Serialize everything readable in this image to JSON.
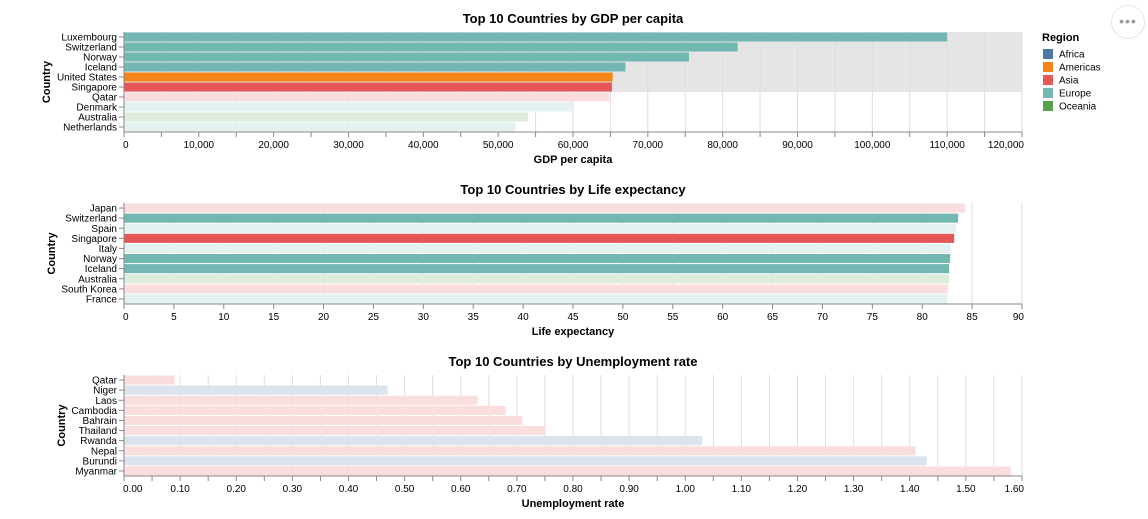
{
  "actions_button": {
    "icon": "ellipsis-icon",
    "glyph": "•••"
  },
  "legend": {
    "title": "Region",
    "entries": [
      {
        "label": "Africa",
        "color": "#4c78a8"
      },
      {
        "label": "Americas",
        "color": "#f58518"
      },
      {
        "label": "Asia",
        "color": "#e45756"
      },
      {
        "label": "Europe",
        "color": "#72b7b2"
      },
      {
        "label": "Oceania",
        "color": "#54a24b"
      }
    ]
  },
  "chart_data": [
    {
      "type": "bar",
      "orientation": "horizontal",
      "title": "Top 10 Countries by GDP per capita",
      "xlabel": "GDP per capita",
      "ylabel": "Country",
      "xlim": [
        0,
        120000
      ],
      "ticks": [
        0,
        10000,
        20000,
        30000,
        40000,
        50000,
        60000,
        70000,
        80000,
        90000,
        100000,
        110000,
        120000
      ],
      "tick_labels": [
        "0",
        "10,000",
        "20,000",
        "30,000",
        "40,000",
        "50,000",
        "60,000",
        "70,000",
        "80,000",
        "90,000",
        "100,000",
        "110,000",
        "120,000"
      ],
      "minor_ticks": true,
      "grid": true,
      "selection_band": [
        "Luxembourg",
        "Singapore"
      ],
      "categories": [
        "Luxembourg",
        "Switzerland",
        "Norway",
        "Iceland",
        "United States",
        "Singapore",
        "Qatar",
        "Denmark",
        "Australia",
        "Netherlands"
      ],
      "values": [
        110000,
        82000,
        75500,
        67000,
        65300,
        65200,
        64900,
        59900,
        54000,
        52300
      ],
      "regions": [
        "Europe",
        "Europe",
        "Europe",
        "Europe",
        "Americas",
        "Asia",
        "Asia",
        "Europe",
        "Oceania",
        "Europe"
      ],
      "highlighted": [
        true,
        true,
        true,
        true,
        true,
        true,
        false,
        false,
        false,
        false
      ]
    },
    {
      "type": "bar",
      "orientation": "horizontal",
      "title": "Top 10 Countries by Life expectancy",
      "xlabel": "Life expectancy",
      "ylabel": "Country",
      "xlim": [
        0,
        90
      ],
      "ticks": [
        0,
        5,
        10,
        15,
        20,
        25,
        30,
        35,
        40,
        45,
        50,
        55,
        60,
        65,
        70,
        75,
        80,
        85,
        90
      ],
      "tick_labels": [
        "0",
        "5",
        "10",
        "15",
        "20",
        "25",
        "30",
        "35",
        "40",
        "45",
        "50",
        "55",
        "60",
        "65",
        "70",
        "75",
        "80",
        "85",
        "90"
      ],
      "minor_ticks": false,
      "grid": true,
      "categories": [
        "Japan",
        "Switzerland",
        "Spain",
        "Singapore",
        "Italy",
        "Norway",
        "Iceland",
        "Australia",
        "South Korea",
        "France"
      ],
      "values": [
        84.3,
        83.6,
        83.4,
        83.2,
        82.9,
        82.8,
        82.7,
        82.7,
        82.6,
        82.5
      ],
      "regions": [
        "Asia",
        "Europe",
        "Europe",
        "Asia",
        "Europe",
        "Europe",
        "Europe",
        "Oceania",
        "Asia",
        "Europe"
      ],
      "highlighted": [
        false,
        true,
        false,
        true,
        false,
        true,
        true,
        false,
        false,
        false
      ]
    },
    {
      "type": "bar",
      "orientation": "horizontal",
      "title": "Top 10 Countries by Unemployment rate",
      "xlabel": "Unemployment rate",
      "ylabel": "Country",
      "xlim": [
        0,
        1.6
      ],
      "ticks": [
        0,
        0.1,
        0.2,
        0.3,
        0.4,
        0.5,
        0.6,
        0.7,
        0.8,
        0.9,
        1.0,
        1.1,
        1.2,
        1.3,
        1.4,
        1.5,
        1.6
      ],
      "tick_labels": [
        "0.00",
        "0.10",
        "0.20",
        "0.30",
        "0.40",
        "0.50",
        "0.60",
        "0.70",
        "0.80",
        "0.90",
        "1.00",
        "1.10",
        "1.20",
        "1.30",
        "1.40",
        "1.50",
        "1.60"
      ],
      "minor_ticks": true,
      "grid": true,
      "categories": [
        "Qatar",
        "Niger",
        "Laos",
        "Cambodia",
        "Bahrain",
        "Thailand",
        "Rwanda",
        "Nepal",
        "Burundi",
        "Myanmar"
      ],
      "values": [
        0.09,
        0.47,
        0.63,
        0.68,
        0.71,
        0.75,
        1.03,
        1.41,
        1.43,
        1.58
      ],
      "regions": [
        "Asia",
        "Africa",
        "Asia",
        "Asia",
        "Asia",
        "Asia",
        "Africa",
        "Asia",
        "Africa",
        "Asia"
      ],
      "highlighted": [
        false,
        false,
        false,
        false,
        false,
        false,
        false,
        false,
        false,
        false
      ]
    }
  ]
}
